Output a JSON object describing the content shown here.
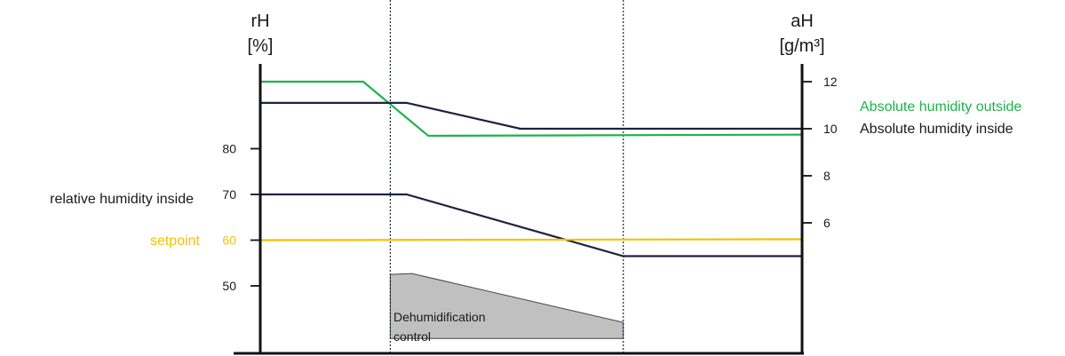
{
  "chart_data": {
    "type": "line",
    "left_axis": {
      "title_line1": "rH",
      "title_line2": "[%]",
      "ticks": [
        80,
        70,
        60,
        50
      ]
    },
    "right_axis": {
      "title_line1": "aH",
      "title_line2": "[g/m³]",
      "ticks": [
        12,
        10,
        8,
        6
      ]
    },
    "labels": {
      "rh_inside": "relative humidity inside",
      "setpoint": "setpoint",
      "ah_outside": "Absolute humidity outside",
      "ah_inside": "Absolute humidity inside",
      "dehum_line1": "Dehumidification",
      "dehum_line2": "control"
    },
    "series": [
      {
        "key": "ah_outside",
        "axis": "right",
        "color": "#1db34a",
        "points": [
          [
            0,
            12
          ],
          [
            0.19,
            12
          ],
          [
            0.31,
            9.7
          ],
          [
            1.0,
            9.75
          ]
        ]
      },
      {
        "key": "ah_inside",
        "axis": "right",
        "color": "#1c2340",
        "points": [
          [
            0,
            11.1
          ],
          [
            0.27,
            11.1
          ],
          [
            0.48,
            10.0
          ],
          [
            1.0,
            10.0
          ]
        ]
      },
      {
        "key": "rh_inside",
        "axis": "left",
        "color": "#1c2340",
        "points": [
          [
            0,
            70
          ],
          [
            0.27,
            70
          ],
          [
            0.67,
            56.5
          ],
          [
            1.0,
            56.5
          ]
        ]
      },
      {
        "key": "setpoint",
        "axis": "left",
        "color": "#f2c200",
        "points": [
          [
            0,
            60
          ],
          [
            1.0,
            60.2
          ]
        ]
      }
    ],
    "dehum_area": {
      "color": "#c0c0c0",
      "points": [
        [
          0.24,
          52.5
        ],
        [
          0.28,
          52.7
        ],
        [
          0.67,
          42
        ],
        [
          0.67,
          38.5
        ],
        [
          0.24,
          38.5
        ]
      ]
    },
    "phase_lines": [
      0.24,
      0.67
    ],
    "colors": {
      "axis": "#111111",
      "setpoint": "#f2c200",
      "outside": "#1db34a",
      "inside": "#1c2340"
    }
  }
}
